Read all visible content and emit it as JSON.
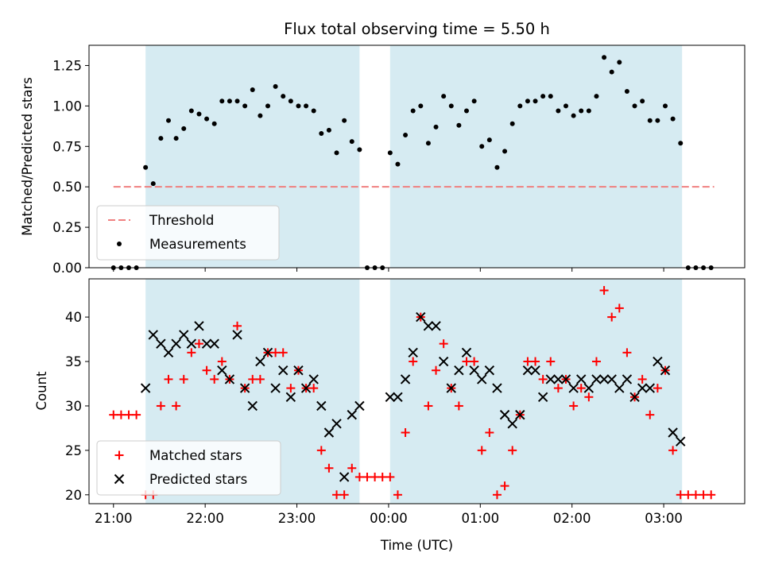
{
  "chart_data": [
    {
      "type": "scatter",
      "title": "Flux total observing time = 5.50 h",
      "ylabel": "Matched/Predicted stars",
      "xlabel": "",
      "xlim": [
        "20:44",
        "03:53"
      ],
      "ylim": [
        0,
        1.375
      ],
      "x_ticks": [
        "21:00",
        "22:00",
        "23:00",
        "00:00",
        "01:00",
        "02:00",
        "03:00"
      ],
      "y_ticks": [
        0.0,
        0.25,
        0.5,
        0.75,
        1.0,
        1.25
      ],
      "y_tick_labels": [
        "0.00",
        "0.25",
        "0.50",
        "0.75",
        "1.00",
        "1.25"
      ],
      "shaded_intervals": [
        [
          "21:21",
          "23:41"
        ],
        [
          "00:01",
          "03:12"
        ]
      ],
      "shade_color": "#add8e6",
      "threshold": {
        "name": "Threshold",
        "value": 0.5,
        "x_start": "21:00",
        "x_end": "03:33",
        "color": "#f08080"
      },
      "legend": {
        "placement": "lower-left",
        "entries": [
          "Threshold",
          "Measurements"
        ]
      },
      "series": [
        {
          "name": "Measurements",
          "color": "#000000",
          "marker": "dot",
          "x": [
            "21:00",
            "21:05",
            "21:10",
            "21:15",
            "21:21",
            "21:26",
            "21:31",
            "21:36",
            "21:41",
            "21:46",
            "21:51",
            "21:56",
            "22:01",
            "22:06",
            "22:11",
            "22:16",
            "22:21",
            "22:26",
            "22:31",
            "22:36",
            "22:41",
            "22:46",
            "22:51",
            "22:56",
            "23:01",
            "23:06",
            "23:11",
            "23:16",
            "23:21",
            "23:26",
            "23:31",
            "23:36",
            "23:41",
            "23:46",
            "23:51",
            "23:56",
            "00:01",
            "00:06",
            "00:11",
            "00:16",
            "00:21",
            "00:26",
            "00:31",
            "00:36",
            "00:41",
            "00:46",
            "00:51",
            "00:56",
            "01:01",
            "01:06",
            "01:11",
            "01:16",
            "01:21",
            "01:26",
            "01:31",
            "01:36",
            "01:41",
            "01:46",
            "01:51",
            "01:56",
            "02:01",
            "02:06",
            "02:11",
            "02:16",
            "02:21",
            "02:26",
            "02:31",
            "02:36",
            "02:41",
            "02:46",
            "02:51",
            "02:56",
            "03:01",
            "03:06",
            "03:11",
            "03:16",
            "03:21",
            "03:26",
            "03:31"
          ],
          "y": [
            0,
            0,
            0,
            0,
            0.62,
            0.52,
            0.8,
            0.91,
            0.8,
            0.86,
            0.97,
            0.95,
            0.92,
            0.89,
            1.03,
            1.03,
            1.03,
            1.0,
            1.1,
            0.94,
            1.0,
            1.12,
            1.06,
            1.03,
            1.0,
            1.0,
            0.97,
            0.83,
            0.85,
            0.71,
            0.91,
            0.78,
            0.73,
            0,
            0,
            0,
            0.71,
            0.64,
            0.82,
            0.97,
            1.0,
            0.77,
            0.87,
            1.06,
            1.0,
            0.88,
            0.97,
            1.03,
            0.75,
            0.79,
            0.62,
            0.72,
            0.89,
            1.0,
            1.03,
            1.03,
            1.06,
            1.06,
            0.97,
            1.0,
            0.94,
            0.97,
            0.97,
            1.06,
            1.3,
            1.21,
            1.27,
            1.09,
            1.0,
            1.03,
            0.91,
            0.91,
            1.0,
            0.92,
            0.77,
            0,
            0,
            0,
            0
          ]
        }
      ]
    },
    {
      "type": "scatter",
      "title": "",
      "ylabel": "Count",
      "xlabel": "Time (UTC)",
      "xlim": [
        "20:44",
        "03:53"
      ],
      "ylim": [
        19,
        44.3
      ],
      "x_ticks": [
        "21:00",
        "22:00",
        "23:00",
        "00:00",
        "01:00",
        "02:00",
        "03:00"
      ],
      "y_ticks": [
        20,
        25,
        30,
        35,
        40
      ],
      "y_tick_labels": [
        "20",
        "25",
        "30",
        "35",
        "40"
      ],
      "shaded_intervals": [
        [
          "21:21",
          "23:41"
        ],
        [
          "00:01",
          "03:12"
        ]
      ],
      "shade_color": "#add8e6",
      "legend": {
        "placement": "lower-left",
        "entries": [
          "Matched stars",
          "Predicted stars"
        ]
      },
      "series": [
        {
          "name": "Matched stars",
          "color": "#ff0000",
          "marker": "plus",
          "x": [
            "21:00",
            "21:05",
            "21:10",
            "21:15",
            "21:21",
            "21:26",
            "21:31",
            "21:36",
            "21:41",
            "21:46",
            "21:51",
            "21:56",
            "22:01",
            "22:06",
            "22:11",
            "22:16",
            "22:21",
            "22:26",
            "22:31",
            "22:36",
            "22:41",
            "22:46",
            "22:51",
            "22:56",
            "23:01",
            "23:06",
            "23:11",
            "23:16",
            "23:21",
            "23:26",
            "23:31",
            "23:36",
            "23:41",
            "23:46",
            "23:51",
            "23:56",
            "00:01",
            "00:06",
            "00:11",
            "00:16",
            "00:21",
            "00:26",
            "00:31",
            "00:36",
            "00:41",
            "00:46",
            "00:51",
            "00:56",
            "01:01",
            "01:06",
            "01:11",
            "01:16",
            "01:21",
            "01:26",
            "01:31",
            "01:36",
            "01:41",
            "01:46",
            "01:51",
            "01:56",
            "02:01",
            "02:06",
            "02:11",
            "02:16",
            "02:21",
            "02:26",
            "02:31",
            "02:36",
            "02:41",
            "02:46",
            "02:51",
            "02:56",
            "03:01",
            "03:06",
            "03:11",
            "03:16",
            "03:21",
            "03:26",
            "03:31"
          ],
          "y": [
            29,
            29,
            29,
            29,
            20,
            20,
            30,
            33,
            30,
            33,
            36,
            37,
            34,
            33,
            35,
            33,
            39,
            32,
            33,
            33,
            36,
            36,
            36,
            32,
            34,
            32,
            32,
            25,
            23,
            20,
            20,
            23,
            22,
            22,
            22,
            22,
            22,
            20,
            27,
            35,
            40,
            30,
            34,
            37,
            32,
            30,
            35,
            35,
            25,
            27,
            20,
            21,
            25,
            29,
            35,
            35,
            33,
            35,
            32,
            33,
            30,
            32,
            31,
            35,
            43,
            40,
            41,
            36,
            31,
            33,
            29,
            32,
            34,
            25,
            20,
            20,
            20,
            20,
            20
          ]
        },
        {
          "name": "Predicted stars",
          "color": "#000000",
          "marker": "x",
          "x": [
            "21:21",
            "21:26",
            "21:31",
            "21:36",
            "21:41",
            "21:46",
            "21:51",
            "21:56",
            "22:01",
            "22:06",
            "22:11",
            "22:16",
            "22:21",
            "22:26",
            "22:31",
            "22:36",
            "22:41",
            "22:46",
            "22:51",
            "22:56",
            "23:01",
            "23:06",
            "23:11",
            "23:16",
            "23:21",
            "23:26",
            "23:31",
            "23:36",
            "23:41",
            "00:01",
            "00:06",
            "00:11",
            "00:16",
            "00:21",
            "00:26",
            "00:31",
            "00:36",
            "00:41",
            "00:46",
            "00:51",
            "00:56",
            "01:01",
            "01:06",
            "01:11",
            "01:16",
            "01:21",
            "01:26",
            "01:31",
            "01:36",
            "01:41",
            "01:46",
            "01:51",
            "01:56",
            "02:01",
            "02:06",
            "02:11",
            "02:16",
            "02:21",
            "02:26",
            "02:31",
            "02:36",
            "02:41",
            "02:46",
            "02:51",
            "02:56",
            "03:01",
            "03:06",
            "03:11"
          ],
          "y": [
            32,
            38,
            37,
            36,
            37,
            38,
            37,
            39,
            37,
            37,
            34,
            33,
            38,
            32,
            30,
            35,
            36,
            32,
            34,
            31,
            34,
            32,
            33,
            30,
            27,
            28,
            22,
            29,
            30,
            31,
            31,
            33,
            36,
            40,
            39,
            39,
            35,
            32,
            34,
            36,
            34,
            33,
            34,
            32,
            29,
            28,
            29,
            34,
            34,
            31,
            33,
            33,
            33,
            32,
            33,
            32,
            33,
            33,
            33,
            32,
            33,
            31,
            32,
            32,
            35,
            34,
            27,
            26
          ]
        }
      ]
    }
  ]
}
